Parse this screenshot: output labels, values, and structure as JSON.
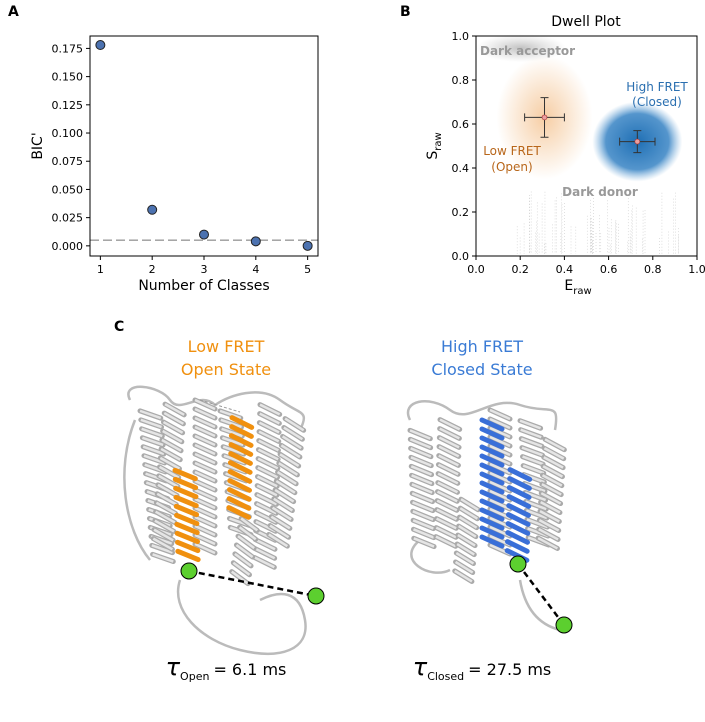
{
  "chart_data": [
    {
      "type": "scatter",
      "panel": "A",
      "xlabel": "Number of Classes",
      "ylabel": "BIC'",
      "x": [
        1,
        2,
        3,
        4,
        5
      ],
      "values": [
        0.178,
        0.032,
        0.01,
        0.004,
        0.0
      ],
      "color": "#4c72b0",
      "reference_line": 0.005,
      "xlim": [
        0.8,
        5.2
      ],
      "xticks": [
        1,
        2,
        3,
        4,
        5
      ],
      "ylim": [
        -0.009,
        0.186
      ],
      "yticks": [
        {
          "value": 0,
          "label": "0.000"
        },
        {
          "value": 0.025,
          "label": "0.025"
        },
        {
          "value": 0.05,
          "label": "0.050"
        },
        {
          "value": 0.075,
          "label": "0.075"
        },
        {
          "value": 0.1,
          "label": "0.100"
        },
        {
          "value": 0.125,
          "label": "0.125"
        },
        {
          "value": 0.15,
          "label": "0.150"
        },
        {
          "value": 0.175,
          "label": "0.175"
        }
      ]
    },
    {
      "type": "scatter",
      "panel": "B",
      "title": "Dwell Plot",
      "xlabel": "E",
      "xlabel_subscript": "raw",
      "ylabel": "S",
      "ylabel_subscript": "raw",
      "annotations": [
        "Dark acceptor",
        "High FRET",
        "(Closed)",
        "Low FRET",
        "(Open)",
        "Dark donor"
      ],
      "series": [
        {
          "color": "#f5c89a",
          "x": [
            0.31
          ],
          "values": [
            0.63
          ],
          "xerr": [
            0.09
          ],
          "yerr": [
            0.09
          ]
        },
        {
          "color": "#1f6fb4",
          "x": [
            0.73
          ],
          "values": [
            0.52
          ],
          "xerr": [
            0.08
          ],
          "yerr": [
            0.05
          ]
        }
      ],
      "xlim": [
        0,
        1
      ],
      "xticks": [
        {
          "value": 0,
          "label": "0.0"
        },
        {
          "value": 0.2,
          "label": "0.2"
        },
        {
          "value": 0.4,
          "label": "0.4"
        },
        {
          "value": 0.6,
          "label": "0.6"
        },
        {
          "value": 0.8,
          "label": "0.8"
        },
        {
          "value": 1,
          "label": "1.0"
        }
      ],
      "ylim": [
        0,
        1
      ],
      "yticks": [
        {
          "value": 0,
          "label": "0.0"
        },
        {
          "value": 0.2,
          "label": "0.2"
        },
        {
          "value": 0.4,
          "label": "0.4"
        },
        {
          "value": 0.6,
          "label": "0.6"
        },
        {
          "value": 0.8,
          "label": "0.8"
        },
        {
          "value": 1,
          "label": "1.0"
        }
      ]
    }
  ],
  "panel_c": {
    "panel": "C",
    "left": {
      "title": [
        "Low FRET",
        "Open State"
      ],
      "symbol": "τ",
      "subscript": "Open",
      "value_text": "= 6.1 ms"
    },
    "right": {
      "title": [
        "High FRET",
        "Closed State"
      ],
      "symbol": "τ",
      "subscript": "Closed",
      "value_text": "= 27.5 ms"
    }
  }
}
